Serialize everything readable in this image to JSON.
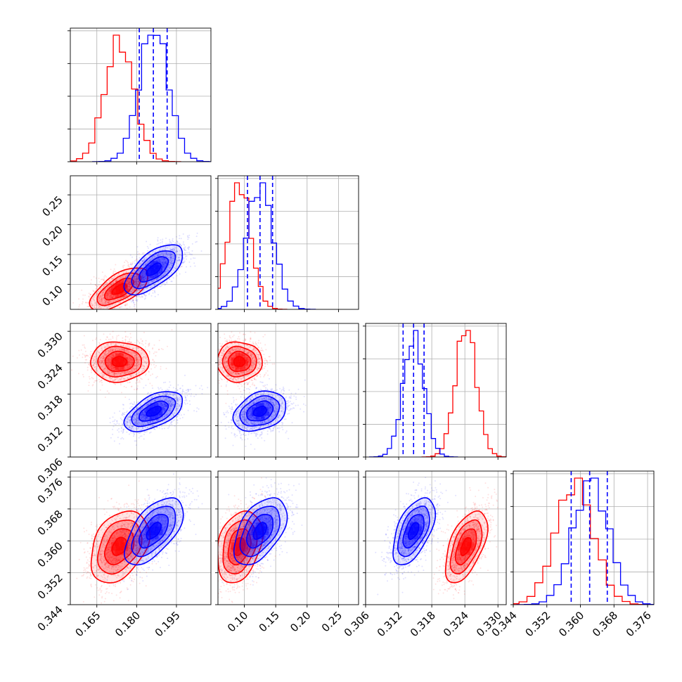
{
  "chart_data": {
    "type": "corner",
    "grid": true,
    "colors": {
      "series_a": "#ff0000",
      "series_b": "#0000ff",
      "quantile_lines": "#0000ff"
    },
    "parameters": [
      {
        "range": [
          0.155,
          0.208
        ],
        "ticks": [
          0.165,
          0.18,
          0.195
        ],
        "tick_labels": [
          "0.165",
          "0.180",
          "0.195"
        ]
      },
      {
        "range": [
          0.058,
          0.282
        ],
        "ticks": [
          0.1,
          0.15,
          0.2,
          0.25
        ],
        "tick_labels": [
          "0.10",
          "0.15",
          "0.20",
          "0.25"
        ]
      },
      {
        "range": [
          0.306,
          0.3315
        ],
        "ticks": [
          0.306,
          0.312,
          0.318,
          0.324,
          0.33
        ],
        "tick_labels": [
          "0.306",
          "0.312",
          "0.318",
          "0.324",
          "0.330"
        ]
      },
      {
        "range": [
          0.344,
          0.3775
        ],
        "ticks": [
          0.344,
          0.352,
          0.36,
          0.368,
          0.376
        ],
        "tick_labels": [
          "0.344",
          "0.352",
          "0.360",
          "0.368",
          "0.376"
        ]
      }
    ],
    "series": [
      {
        "color": "#ff0000",
        "mean": [
          0.1735,
          0.092,
          0.3242,
          0.3586
        ],
        "std": [
          0.0055,
          0.018,
          0.0019,
          0.0045
        ]
      },
      {
        "color": "#0000ff",
        "mean": [
          0.1865,
          0.125,
          0.3147,
          0.3625
        ],
        "std": [
          0.0055,
          0.021,
          0.0019,
          0.0042
        ]
      }
    ],
    "correlations": [
      {
        "pair": [
          0,
          1
        ],
        "series_a": 0.65,
        "series_b": 0.65
      },
      {
        "pair": [
          0,
          2
        ],
        "series_a": 0.0,
        "series_b": 0.55
      },
      {
        "pair": [
          1,
          2
        ],
        "series_a": 0.0,
        "series_b": 0.3
      },
      {
        "pair": [
          0,
          3
        ],
        "series_a": 0.35,
        "series_b": 0.6
      },
      {
        "pair": [
          1,
          3
        ],
        "series_a": 0.3,
        "series_b": 0.5
      },
      {
        "pair": [
          2,
          3
        ],
        "series_a": 0.55,
        "series_b": 0.55
      }
    ],
    "quantiles_series_b": [
      [
        0.181,
        0.1863,
        0.1915
      ],
      [
        0.105,
        0.125,
        0.145
      ],
      [
        0.3128,
        0.3147,
        0.3166
      ],
      [
        0.3578,
        0.3622,
        0.3664
      ]
    ],
    "contour_levels": [
      0.5,
      1.0,
      1.5,
      2.0
    ],
    "histogram_bins": 20
  }
}
